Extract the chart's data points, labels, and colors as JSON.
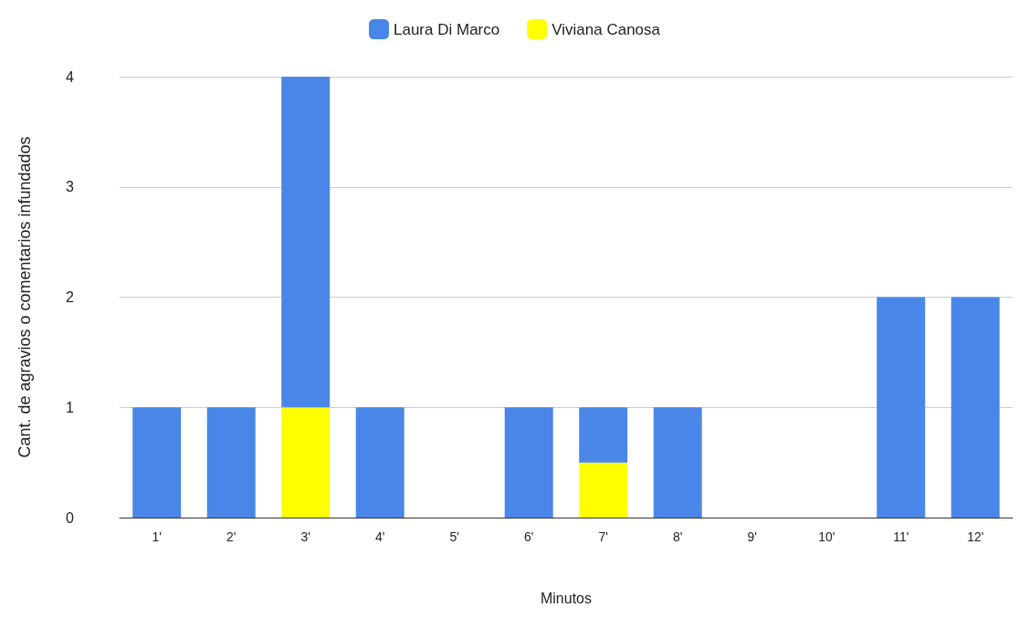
{
  "chart_data": {
    "type": "bar",
    "stacked": true,
    "xlabel": "Minutos",
    "ylabel": "Cant. de agravios o comentarios infundados",
    "categories": [
      "1'",
      "2'",
      "3'",
      "4'",
      "5'",
      "6'",
      "7'",
      "8'",
      "9'",
      "10'",
      "11'",
      "12'"
    ],
    "series": [
      {
        "name": "Viviana Canosa",
        "color": "#ffff00",
        "values": [
          0,
          0,
          1,
          0,
          0,
          0,
          0.5,
          0,
          0,
          0,
          0,
          0
        ]
      },
      {
        "name": "Laura Di Marco",
        "color": "#4a86e8",
        "values": [
          1,
          1,
          3,
          1,
          0,
          1,
          0.5,
          1,
          0,
          0,
          2,
          2
        ]
      }
    ],
    "ylim": [
      0,
      4
    ],
    "yticks": [
      0,
      1,
      2,
      3,
      4
    ],
    "grid": "y",
    "legend": "top"
  }
}
